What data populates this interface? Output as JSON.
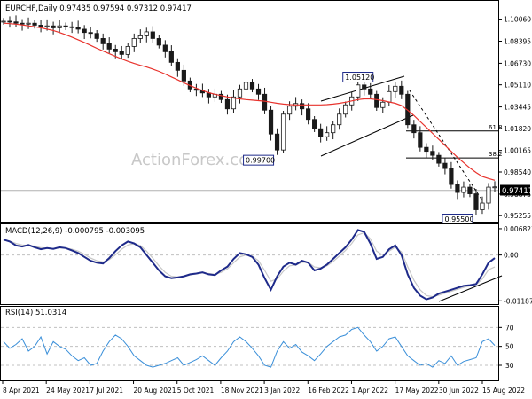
{
  "chart_data": [
    {
      "type": "candlestick",
      "symbol_header": "EURCHF,Daily  0.97435 0.97594 0.97312 0.97417",
      "watermark": "ActionForex.com",
      "y_range": [
        0.95,
        1.111
      ],
      "y_ticks": [
        "1.10060",
        "1.08395",
        "1.06730",
        "1.05110",
        "1.03445",
        "1.01820",
        "1.00165",
        "0.98540",
        "0.96875",
        "0.95255"
      ],
      "last_price": "0.97417",
      "x_labels": [
        "8 Apr 2021",
        "24 May 2021",
        "7 Jul 2021",
        "20 Aug 2021",
        "5 Oct 2021",
        "18 Nov 2021",
        "3 Jan 2022",
        "16 Feb 2022",
        "1 Apr 2022",
        "17 May 2022",
        "30 Jun 2022",
        "15 Aug 2022"
      ],
      "price_series": [
        1.099,
        1.0985,
        1.0975,
        1.0968,
        1.0975,
        1.096,
        1.095,
        1.0955,
        1.094,
        1.0955,
        1.0948,
        1.0945,
        1.093,
        1.0905,
        1.0898,
        1.086,
        1.082,
        1.078,
        1.076,
        1.074,
        1.08,
        1.086,
        1.088,
        1.091,
        1.086,
        1.081,
        1.076,
        1.068,
        1.062,
        1.054,
        1.048,
        1.047,
        1.045,
        1.042,
        1.044,
        1.04,
        1.033,
        1.042,
        1.048,
        1.053,
        1.048,
        1.044,
        1.032,
        1.014,
        1.002,
        1.029,
        1.035,
        1.037,
        1.033,
        1.025,
        1.018,
        1.012,
        1.015,
        1.021,
        1.029,
        1.036,
        1.042,
        1.051,
        1.048,
        1.044,
        1.034,
        1.038,
        1.046,
        1.05,
        1.044,
        1.021,
        1.015,
        1.004,
        1.001,
        0.998,
        0.992,
        0.988,
        0.976,
        0.97,
        0.974,
        0.969,
        0.957,
        0.962,
        0.974,
        0.9742
      ],
      "sma_series": [
        1.0975,
        1.0972,
        1.0968,
        1.0962,
        1.0955,
        1.0948,
        1.094,
        1.093,
        1.092,
        1.0905,
        1.0888,
        1.087,
        1.085,
        1.083,
        1.0808,
        1.0786,
        1.0765,
        1.0745,
        1.0725,
        1.0706,
        1.0688,
        1.0672,
        1.0658,
        1.0645,
        1.063,
        1.0612,
        1.0592,
        1.057,
        1.0548,
        1.0526,
        1.0505,
        1.0486,
        1.0468,
        1.0452,
        1.044,
        1.043,
        1.042,
        1.0412,
        1.0405,
        1.04,
        1.0396,
        1.0392,
        1.0388,
        1.038,
        1.0372,
        1.0366,
        1.0362,
        1.036,
        1.036,
        1.036,
        1.036,
        1.036,
        1.0362,
        1.0366,
        1.0372,
        1.038,
        1.039,
        1.04,
        1.0405,
        1.0405,
        1.04,
        1.0392,
        1.0382,
        1.0372,
        1.0355,
        1.032,
        1.028,
        1.0235,
        1.019,
        1.0145,
        1.01,
        1.0055,
        1.001,
        0.9965,
        0.9925,
        0.9885,
        0.985,
        0.982,
        0.9805,
        0.9792
      ],
      "annotations": [
        {
          "label": "1.05120",
          "price": 1.0512,
          "date_index": 57
        },
        {
          "label": "0.99700",
          "price": 0.997,
          "date_index": 44
        },
        {
          "label": "0.95500",
          "price": 0.955,
          "date_index": 76
        }
      ],
      "fib_levels": [
        {
          "label": "61.8",
          "price": 1.0163
        },
        {
          "label": "38.2",
          "price": 0.996
        }
      ]
    },
    {
      "type": "line",
      "title": "MACD(12,26,9) -0.000795 -0.003095",
      "y_range": [
        -0.0125,
        0.0075
      ],
      "y_ticks": [
        "0.006823",
        "0.00",
        "-0.011874"
      ],
      "macd_series": [
        0.004,
        0.0035,
        0.0025,
        0.0022,
        0.0026,
        0.002,
        0.0015,
        0.0018,
        0.0016,
        0.002,
        0.0018,
        0.0012,
        0.0005,
        -0.0005,
        -0.0015,
        -0.002,
        -0.0022,
        -0.0008,
        0.001,
        0.0025,
        0.0035,
        0.003,
        0.002,
        0.0,
        -0.002,
        -0.004,
        -0.0055,
        -0.006,
        -0.0058,
        -0.0055,
        -0.005,
        -0.0048,
        -0.0045,
        -0.005,
        -0.0052,
        -0.004,
        -0.003,
        -0.001,
        0.0005,
        0.0002,
        -0.0005,
        -0.0025,
        -0.006,
        -0.009,
        -0.0055,
        -0.003,
        -0.002,
        -0.0025,
        -0.0015,
        -0.002,
        -0.004,
        -0.0035,
        -0.0025,
        -0.001,
        0.0005,
        0.002,
        0.004,
        0.0065,
        0.006,
        0.003,
        -0.001,
        -0.0005,
        0.0015,
        0.0025,
        0.0,
        -0.005,
        -0.0085,
        -0.0105,
        -0.0115,
        -0.011,
        -0.01,
        -0.0095,
        -0.009,
        -0.0085,
        -0.008,
        -0.0078,
        -0.0075,
        -0.005,
        -0.002,
        -0.0008
      ],
      "signal_series": [
        0.0038,
        0.0036,
        0.003,
        0.0026,
        0.0025,
        0.0023,
        0.0019,
        0.0018,
        0.0017,
        0.0018,
        0.0018,
        0.0015,
        0.001,
        0.0002,
        -0.0008,
        -0.0015,
        -0.0018,
        -0.0012,
        0.0,
        0.0015,
        0.0026,
        0.0029,
        0.0025,
        0.001,
        -0.0008,
        -0.0028,
        -0.0045,
        -0.0055,
        -0.0057,
        -0.0056,
        -0.0052,
        -0.0049,
        -0.0046,
        -0.0048,
        -0.005,
        -0.0045,
        -0.0036,
        -0.002,
        -0.0005,
        0.0,
        -0.0003,
        -0.0015,
        -0.004,
        -0.0068,
        -0.0062,
        -0.0042,
        -0.0028,
        -0.0026,
        -0.0019,
        -0.0019,
        -0.0031,
        -0.0033,
        -0.0028,
        -0.0017,
        -0.0003,
        0.0012,
        0.003,
        0.0052,
        0.0058,
        0.0042,
        0.001,
        0.0,
        0.001,
        0.002,
        0.0008,
        -0.003,
        -0.0065,
        -0.009,
        -0.0105,
        -0.0108,
        -0.0104,
        -0.0099,
        -0.0094,
        -0.0089,
        -0.0084,
        -0.008,
        -0.0077,
        -0.0062,
        -0.0038,
        -0.0031
      ]
    },
    {
      "type": "line",
      "title": "RSI(14) 51.0314",
      "y_range": [
        15,
        90
      ],
      "y_ticks": [
        "70",
        "50",
        "30"
      ],
      "rsi_series": [
        55,
        48,
        52,
        58,
        45,
        50,
        60,
        42,
        55,
        50,
        47,
        40,
        35,
        38,
        30,
        32,
        45,
        55,
        62,
        58,
        50,
        40,
        35,
        30,
        28,
        30,
        32,
        35,
        38,
        30,
        33,
        36,
        40,
        35,
        30,
        38,
        45,
        55,
        60,
        55,
        48,
        40,
        30,
        28,
        45,
        55,
        48,
        52,
        44,
        40,
        35,
        42,
        50,
        55,
        60,
        62,
        68,
        70,
        62,
        55,
        45,
        50,
        58,
        60,
        50,
        40,
        35,
        30,
        32,
        28,
        35,
        32,
        40,
        30,
        34,
        36,
        38,
        55,
        58,
        51
      ]
    }
  ]
}
